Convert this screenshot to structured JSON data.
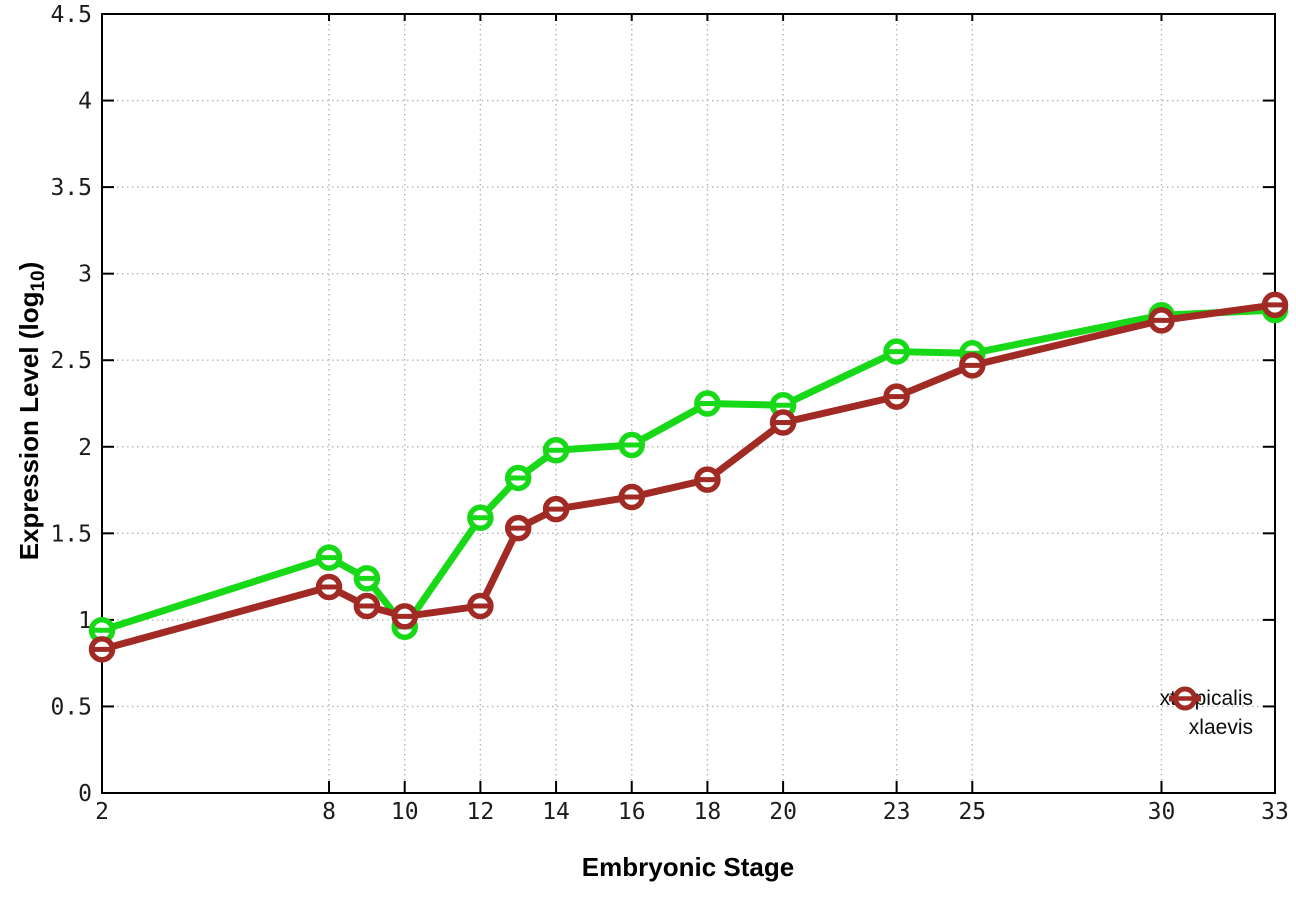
{
  "chart_data": {
    "type": "line",
    "title": "",
    "xlabel": "Embryonic Stage",
    "ylabel": "Expression Level (log10)",
    "ylabel_parts": {
      "main": "Expression Level (log",
      "sub": "10",
      "suffix": ")"
    },
    "xlim": [
      2,
      33
    ],
    "ylim": [
      0,
      4.5
    ],
    "x_ticks": [
      2,
      8,
      10,
      12,
      14,
      16,
      18,
      20,
      23,
      25,
      30,
      33
    ],
    "y_ticks": [
      0,
      0.5,
      1,
      1.5,
      2,
      2.5,
      3,
      3.5,
      4,
      4.5
    ],
    "grid": true,
    "legend_position": "bottom-right",
    "marker": "open-circle-with-dash",
    "x": [
      2,
      8,
      9,
      10,
      12,
      13,
      14,
      16,
      18,
      20,
      23,
      25,
      30,
      33
    ],
    "series": [
      {
        "name": "xtropicalis",
        "color": "#17d917",
        "values": [
          0.94,
          1.36,
          1.24,
          0.96,
          1.59,
          1.82,
          1.98,
          2.01,
          2.25,
          2.24,
          2.55,
          2.54,
          2.76,
          2.79
        ]
      },
      {
        "name": "xlaevis",
        "color": "#a12a24",
        "values": [
          0.83,
          1.19,
          1.08,
          1.02,
          1.08,
          1.53,
          1.64,
          1.71,
          1.81,
          2.14,
          2.29,
          2.47,
          2.73,
          2.82
        ]
      }
    ],
    "style": {
      "grid_color": "#b4b4b4",
      "border_color": "#000000",
      "background": "#ffffff",
      "marker_fill": "#ffffff"
    }
  }
}
